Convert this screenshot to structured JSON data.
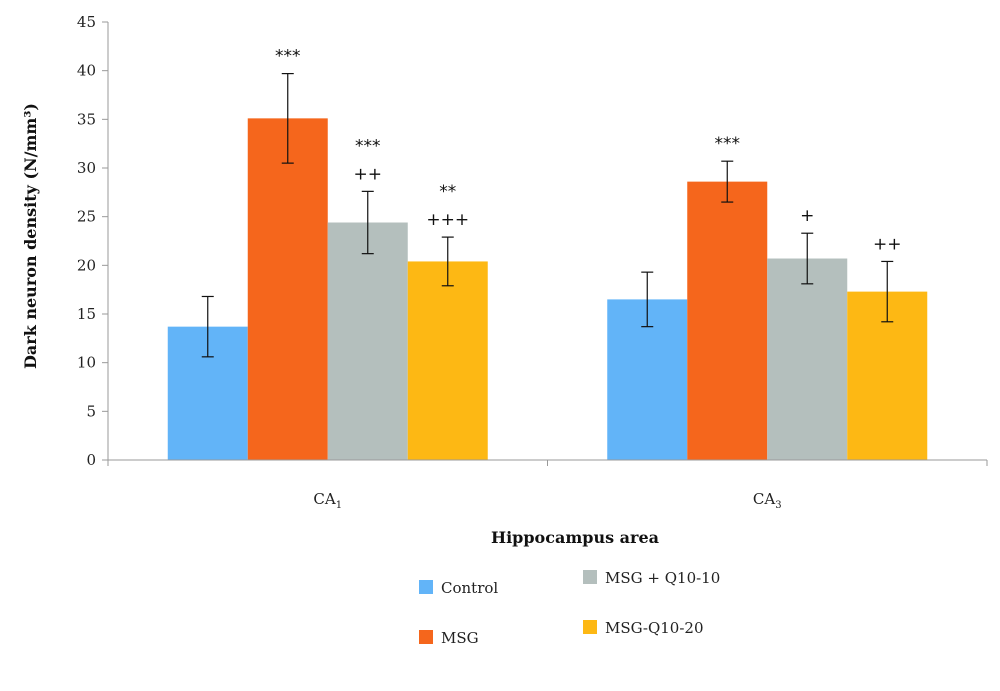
{
  "chart_data": {
    "type": "bar",
    "categories": [
      "CA1",
      "CA3"
    ],
    "category_labels": [
      {
        "main": "CA",
        "sub": "1"
      },
      {
        "main": "CA",
        "sub": "3"
      }
    ],
    "xlabel": "Hippocampus area",
    "ylabel": "Dark neuron density (N/mm³)",
    "ylim": [
      0,
      45
    ],
    "yticks": [
      0,
      5,
      10,
      15,
      20,
      25,
      30,
      35,
      40,
      45
    ],
    "grid": false,
    "legend_position": "bottom",
    "series": [
      {
        "name": "Control",
        "color": "#62b4f8",
        "values": [
          13.7,
          16.5
        ],
        "errors": [
          3.1,
          2.8
        ],
        "annotations": [
          [],
          []
        ]
      },
      {
        "name": "MSG",
        "color": "#f5661c",
        "values": [
          35.1,
          28.6
        ],
        "errors": [
          4.6,
          2.1
        ],
        "annotations": [
          [
            "***"
          ],
          [
            "***"
          ]
        ]
      },
      {
        "name": "MSG + Q10-10",
        "color": "#b4bfbd",
        "values": [
          24.4,
          20.7
        ],
        "errors": [
          3.2,
          2.6
        ],
        "annotations": [
          [
            "***",
            "++"
          ],
          [
            "+"
          ]
        ]
      },
      {
        "name": "MSG-Q10-20",
        "color": "#fdb814",
        "values": [
          20.4,
          17.3
        ],
        "errors": [
          2.5,
          3.1
        ],
        "annotations": [
          [
            "**",
            "+++"
          ],
          [
            "++"
          ]
        ]
      }
    ]
  }
}
